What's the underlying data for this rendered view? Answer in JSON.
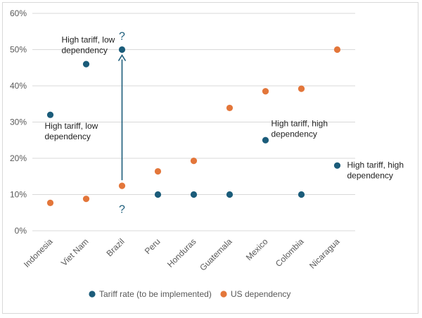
{
  "chart_data": {
    "type": "scatter",
    "title": "",
    "xlabel": "",
    "ylabel": "",
    "categories": [
      "Indonesia",
      "Viet Nam",
      "Brazil",
      "Peru",
      "Honduras",
      "Guatemala",
      "Mexico",
      "Colombia",
      "Nicaragua"
    ],
    "ylim": [
      0,
      60
    ],
    "yticks": [
      0,
      10,
      20,
      30,
      40,
      50,
      60
    ],
    "ytick_labels": [
      "0%",
      "10%",
      "20%",
      "30%",
      "40%",
      "50%",
      "60%"
    ],
    "grid": true,
    "legend_position": "bottom",
    "series": [
      {
        "name": "Tariff rate (to be implemented)",
        "color": "#1b5c7a",
        "values": [
          32,
          46,
          50,
          10,
          10,
          10,
          25,
          10,
          18
        ]
      },
      {
        "name": "US dependency",
        "color": "#e3763a",
        "values": [
          7.7,
          8.8,
          12.4,
          16.4,
          19.3,
          33.9,
          38.5,
          39.2,
          50
        ]
      }
    ],
    "annotations": [
      {
        "category": "Indonesia",
        "lines": [
          "High tariff, low",
          "dependency"
        ]
      },
      {
        "category": "Brazil",
        "lines": [
          "High tariff, low",
          "dependency"
        ]
      },
      {
        "category": "Mexico",
        "lines": [
          "High tariff, high",
          "dependency"
        ]
      },
      {
        "category": "Nicaragua",
        "lines": [
          "High tariff, high",
          "dependency"
        ]
      }
    ],
    "arrow": {
      "category": "Brazil",
      "from": 12.4,
      "to": 50,
      "color": "#1b5c7a",
      "label_top": "?",
      "label_bottom": "?"
    }
  }
}
